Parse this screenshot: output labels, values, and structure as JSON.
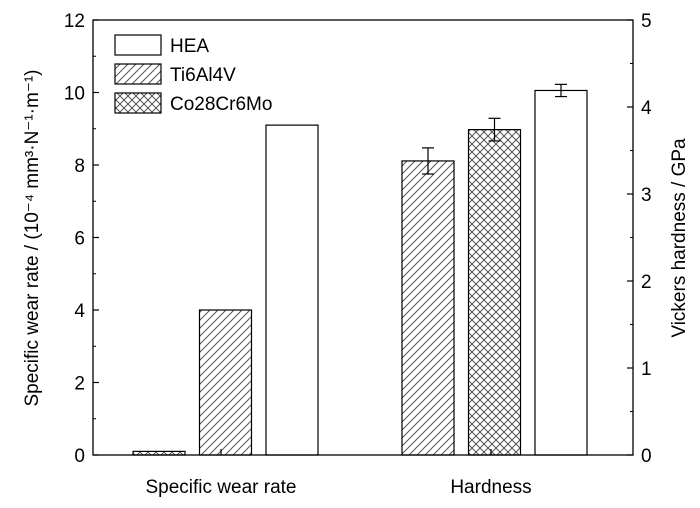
{
  "chart_data": {
    "type": "bar",
    "categories": [
      "Specific wear rate",
      "Hardness"
    ],
    "legend": [
      "HEA",
      "Ti6Al4V",
      "Co28Cr6Mo"
    ],
    "series": [
      {
        "name": "Co28Cr6Mo",
        "pattern": "crosshatch",
        "group": "Specific wear rate",
        "axis": "left",
        "value": 0.1
      },
      {
        "name": "Ti6Al4V",
        "pattern": "diagonal",
        "group": "Specific wear rate",
        "axis": "left",
        "value": 4.0
      },
      {
        "name": "HEA",
        "pattern": "none",
        "group": "Specific wear rate",
        "axis": "left",
        "value": 9.1
      },
      {
        "name": "Ti6Al4V",
        "pattern": "diagonal",
        "group": "Hardness",
        "axis": "right",
        "value": 3.38,
        "error": 0.15
      },
      {
        "name": "Co28Cr6Mo",
        "pattern": "crosshatch",
        "group": "Hardness",
        "axis": "right",
        "value": 3.74,
        "error": 0.13
      },
      {
        "name": "HEA",
        "pattern": "none",
        "group": "Hardness",
        "axis": "right",
        "value": 4.19,
        "error": 0.07
      }
    ],
    "ylabel_left": "Specific wear rate / (10⁻⁴ mm³·N⁻¹·m⁻¹)",
    "ylabel_right": "Vickers hardness / GPa",
    "ylim_left": [
      0,
      12
    ],
    "yticks_left": [
      "0",
      "2",
      "4",
      "6",
      "8",
      "10",
      "12"
    ],
    "ylim_right": [
      0,
      5
    ],
    "yticks_right": [
      "0",
      "1",
      "2",
      "3",
      "4",
      "5"
    ],
    "grid": false,
    "legend_position": "top-left"
  }
}
